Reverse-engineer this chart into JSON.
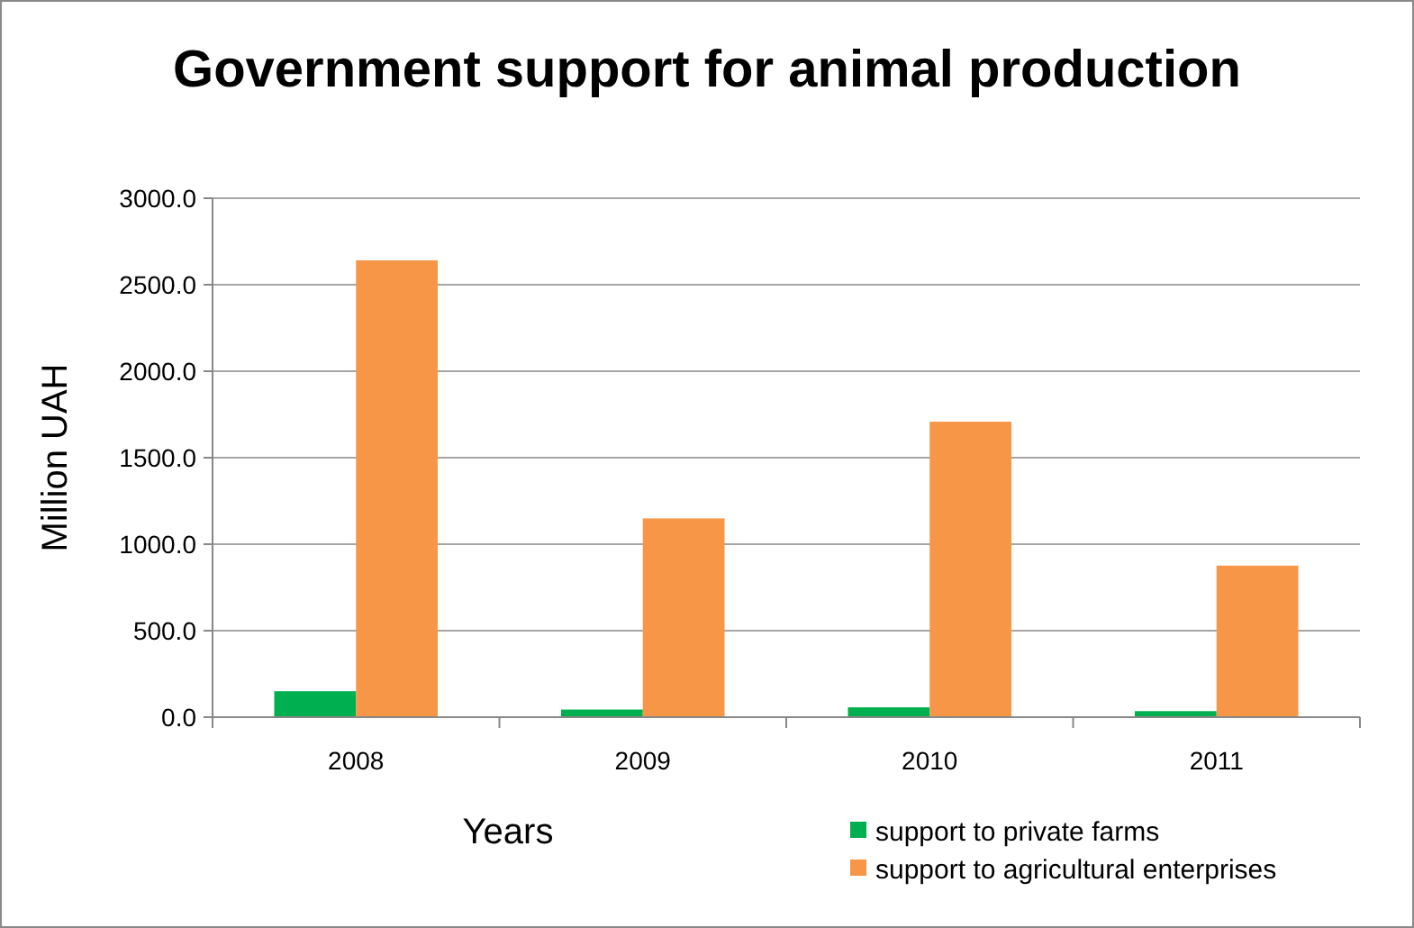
{
  "chart_data": {
    "type": "bar",
    "title": "Government support for animal production",
    "xlabel": "Years",
    "ylabel": "Million UAH",
    "categories": [
      "2008",
      "2009",
      "2010",
      "2011"
    ],
    "series": [
      {
        "name": "support to private farms",
        "color": "#00b050",
        "values": [
          150,
          44,
          57,
          35
        ]
      },
      {
        "name": "support to agricultural enterprises",
        "color": "#f79646",
        "values": [
          2641,
          1149,
          1708,
          876
        ]
      }
    ],
    "ylim": [
      0,
      3000
    ],
    "yticks": [
      {
        "value": 0,
        "label": "0.0"
      },
      {
        "value": 500,
        "label": "500.0"
      },
      {
        "value": 1000,
        "label": "1000.0"
      },
      {
        "value": 1500,
        "label": "1500.0"
      },
      {
        "value": 2000,
        "label": "2000.0"
      },
      {
        "value": 2500,
        "label": "2500.0"
      },
      {
        "value": 3000,
        "label": "3000.0"
      }
    ],
    "grid": "y",
    "legend": "bottom right"
  }
}
